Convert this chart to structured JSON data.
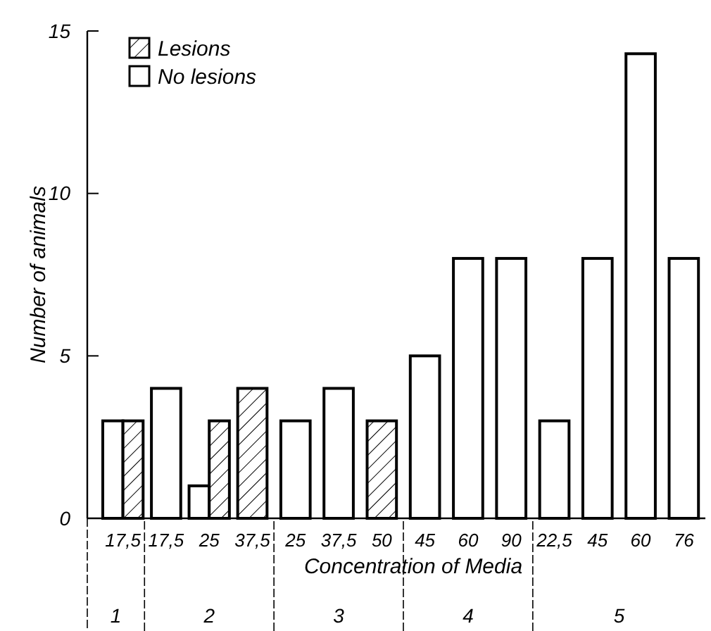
{
  "chart_data": {
    "type": "bar",
    "xlabel": "Concentration of Media",
    "ylabel": "Number of animals",
    "categories": [
      "17,5",
      "17,5",
      "25",
      "37,5",
      "25",
      "37,5",
      "50",
      "45",
      "60",
      "90",
      "22,5",
      "45",
      "60",
      "76"
    ],
    "series": [
      {
        "name": "No lesions",
        "color": "#ffffff",
        "values": [
          3,
          4,
          1,
          null,
          3,
          4,
          null,
          5,
          8,
          8,
          3,
          8,
          14.3,
          8
        ]
      },
      {
        "name": "Lesions",
        "color": "#000000",
        "values": [
          3,
          null,
          3,
          4,
          null,
          null,
          3,
          null,
          null,
          null,
          null,
          null,
          null,
          null
        ]
      }
    ],
    "ylim": [
      0,
      15
    ],
    "yticks": [
      0,
      5,
      10,
      15
    ],
    "grid": false,
    "legend": "top left",
    "annotations": [
      "1",
      "2",
      "3",
      "4",
      "5"
    ]
  }
}
